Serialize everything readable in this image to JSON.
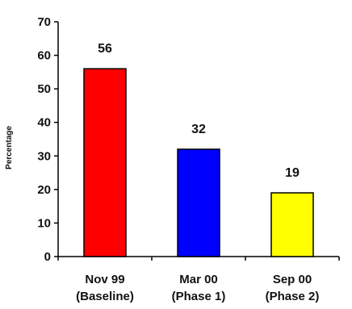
{
  "chart_data": {
    "type": "bar",
    "title": "",
    "xlabel": "",
    "ylabel": "Percentage",
    "ylim": [
      0,
      70
    ],
    "yticks": [
      0,
      10,
      20,
      30,
      40,
      50,
      60,
      70
    ],
    "grid": false,
    "legend": "none",
    "categories": [
      [
        "Nov 99",
        "(Baseline)"
      ],
      [
        "Mar 00",
        "(Phase 1)"
      ],
      [
        "Sep 00",
        "(Phase 2)"
      ]
    ],
    "values": [
      56,
      32,
      19
    ],
    "data_labels": [
      "56",
      "32",
      "19"
    ],
    "colors": [
      "#ff0000",
      "#0000ff",
      "#ffff00"
    ],
    "bar_outline": "#000000",
    "axis_color": "#000000"
  }
}
